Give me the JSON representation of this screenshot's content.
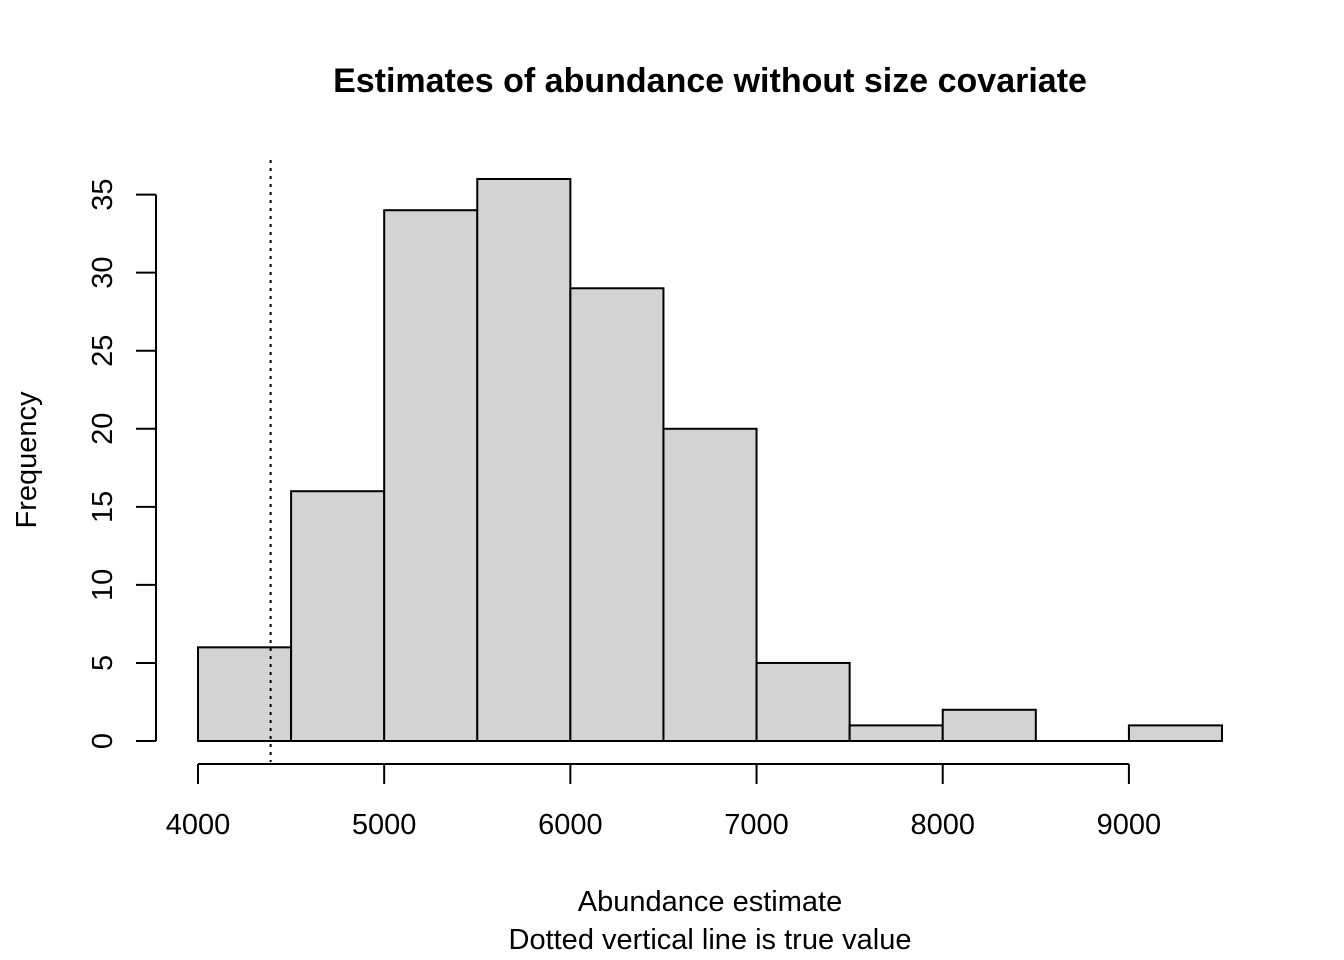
{
  "chart_data": {
    "type": "bar",
    "title": "Estimates of abundance without size covariate",
    "xlabel": "Abundance estimate",
    "subtitle": "Dotted vertical line is true value",
    "ylabel": "Frequency",
    "bins": [
      {
        "start": 4000,
        "end": 4500,
        "count": 6
      },
      {
        "start": 4500,
        "end": 5000,
        "count": 16
      },
      {
        "start": 5000,
        "end": 5500,
        "count": 34
      },
      {
        "start": 5500,
        "end": 6000,
        "count": 36
      },
      {
        "start": 6000,
        "end": 6500,
        "count": 29
      },
      {
        "start": 6500,
        "end": 7000,
        "count": 20
      },
      {
        "start": 7000,
        "end": 7500,
        "count": 5
      },
      {
        "start": 7500,
        "end": 8000,
        "count": 1
      },
      {
        "start": 8000,
        "end": 8500,
        "count": 2
      },
      {
        "start": 8500,
        "end": 9000,
        "count": 0
      },
      {
        "start": 9000,
        "end": 9500,
        "count": 1
      }
    ],
    "true_value": 4390,
    "xticks": [
      4000,
      5000,
      6000,
      7000,
      8000,
      9000
    ],
    "yticks": [
      0,
      5,
      10,
      15,
      20,
      25,
      30,
      35
    ],
    "xlim": [
      4000,
      9500
    ],
    "ylim": [
      0,
      36
    ],
    "bar_color": "#d3d3d3",
    "grid": false,
    "legend": "none"
  }
}
